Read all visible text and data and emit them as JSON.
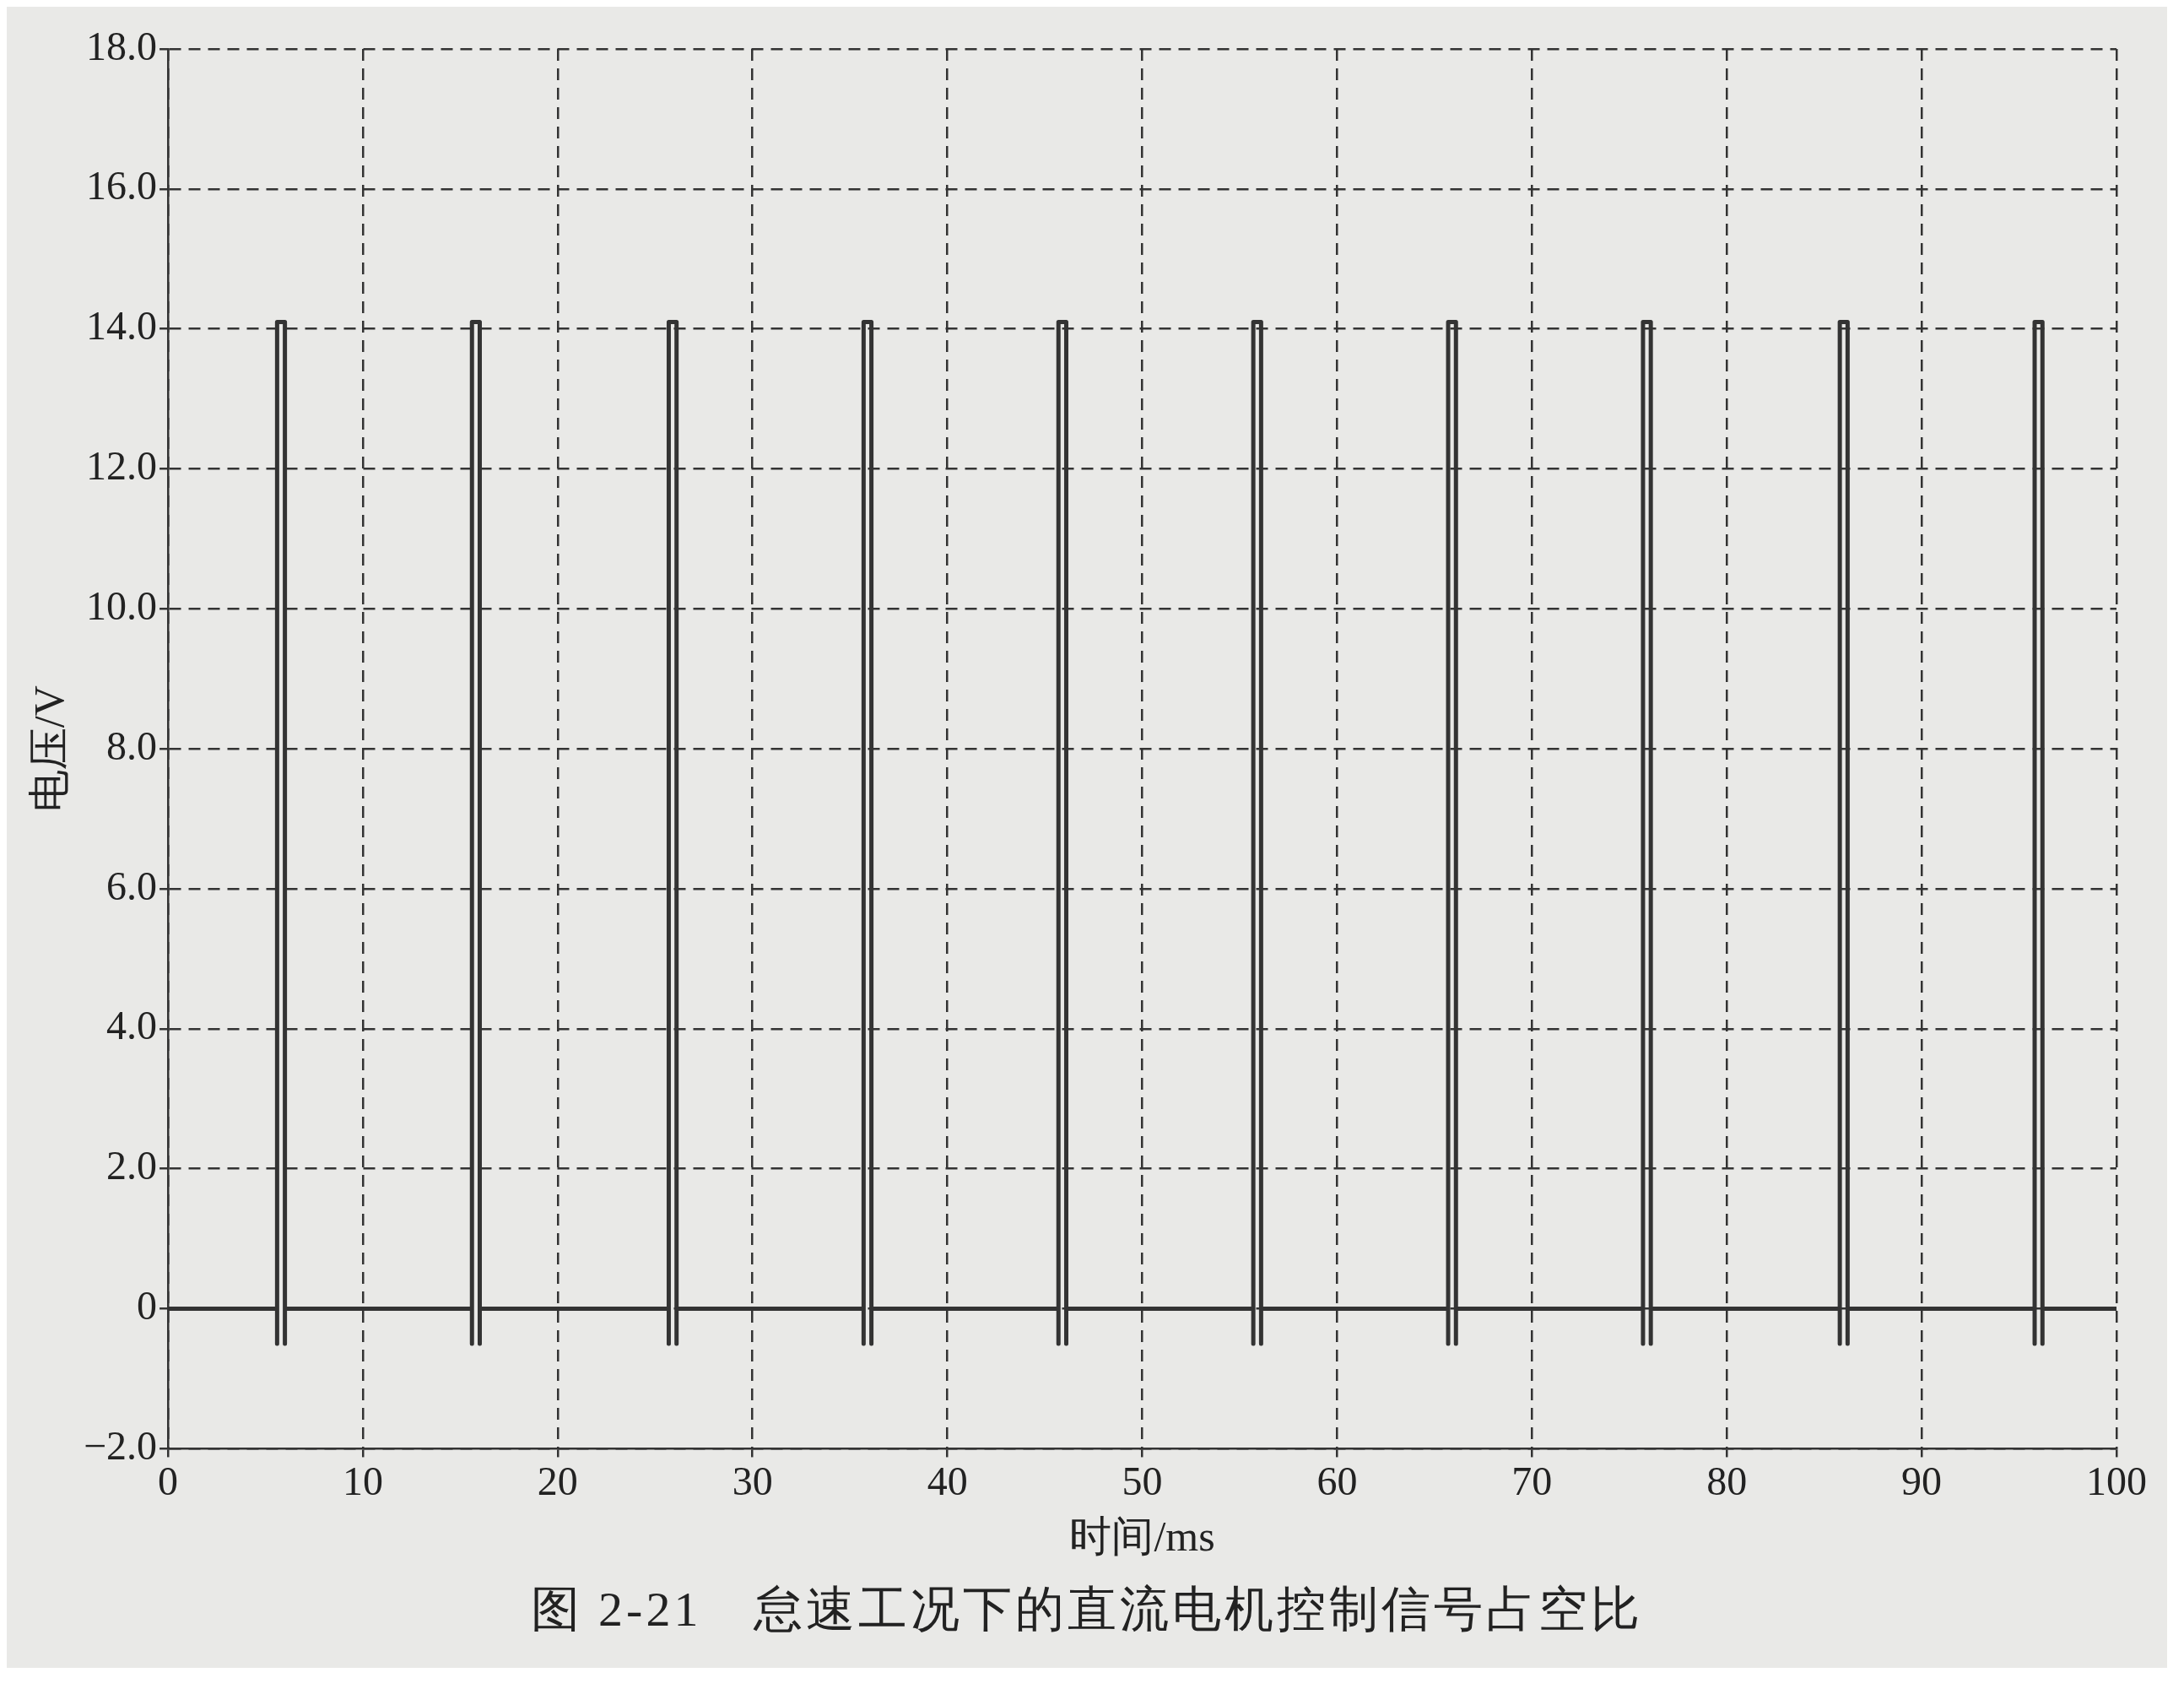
{
  "chart_data": {
    "type": "line",
    "xlabel": "时间/ms",
    "ylabel": "电压/V",
    "annotations": [
      "图 2-21　怠速工况下的直流电机控制信号占空比"
    ],
    "color": "#333333",
    "grid": true,
    "line_style": "solid",
    "marker": "none",
    "legend": false,
    "xlim": [
      0,
      100
    ],
    "xticks": [
      0,
      10,
      20,
      30,
      40,
      50,
      60,
      70,
      80,
      90,
      100
    ],
    "ylim": [
      -2,
      18
    ],
    "yticks": [
      {
        "value": -2,
        "label": "−2.0"
      },
      0,
      {
        "value": 2,
        "label": "2.0"
      },
      {
        "value": 4,
        "label": "4.0"
      },
      {
        "value": 6,
        "label": "6.0"
      },
      {
        "value": 8,
        "label": "8.0"
      },
      {
        "value": 10,
        "label": "10.0"
      },
      {
        "value": 12,
        "label": "12.0"
      },
      {
        "value": 14,
        "label": "14.0"
      },
      {
        "value": 16,
        "label": "16.0"
      },
      {
        "value": 18,
        "label": "18.0"
      }
    ],
    "x": [
      0,
      5.6,
      5.6,
      5.6,
      6.0,
      6.0,
      6.0,
      15.6,
      15.6,
      15.6,
      16.0,
      16.0,
      16.0,
      25.7,
      25.7,
      25.7,
      26.1,
      26.1,
      26.1,
      35.7,
      35.7,
      35.7,
      36.1,
      36.1,
      36.1,
      45.7,
      45.7,
      45.7,
      46.1,
      46.1,
      46.1,
      55.7,
      55.7,
      55.7,
      56.1,
      56.1,
      56.1,
      65.7,
      65.7,
      65.7,
      66.1,
      66.1,
      66.1,
      75.7,
      75.7,
      75.7,
      76.1,
      76.1,
      76.1,
      85.8,
      85.8,
      85.8,
      86.2,
      86.2,
      86.2,
      95.8,
      95.8,
      95.8,
      96.2,
      96.2,
      96.2,
      100
    ],
    "values": [
      0,
      0,
      -0.5,
      14.1,
      14.1,
      -0.5,
      0,
      0,
      -0.5,
      14.1,
      14.1,
      -0.5,
      0,
      0,
      -0.5,
      14.1,
      14.1,
      -0.5,
      0,
      0,
      -0.5,
      14.1,
      14.1,
      -0.5,
      0,
      0,
      -0.5,
      14.1,
      14.1,
      -0.5,
      0,
      0,
      -0.5,
      14.1,
      14.1,
      -0.5,
      0,
      0,
      -0.5,
      14.1,
      14.1,
      -0.5,
      0,
      0,
      -0.5,
      14.1,
      14.1,
      -0.5,
      0,
      0,
      -0.5,
      14.1,
      14.1,
      -0.5,
      0,
      0,
      -0.5,
      14.1,
      14.1,
      -0.5,
      0,
      0
    ]
  }
}
